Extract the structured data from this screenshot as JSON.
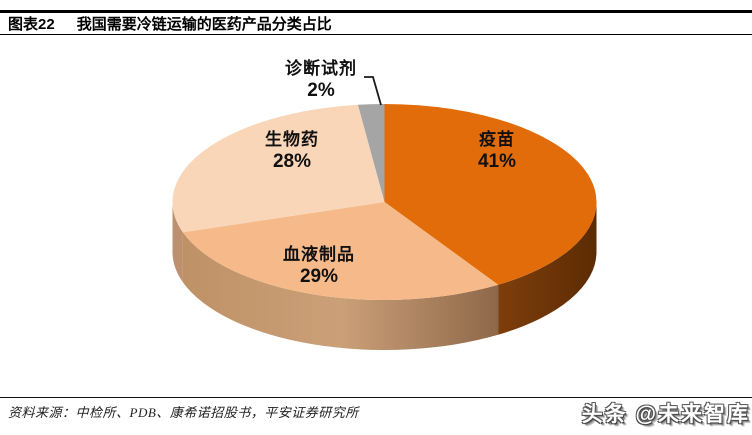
{
  "header": {
    "tag": "图表22",
    "title": "我国需要冷链运输的医药产品分类占比"
  },
  "footer": {
    "source": "资料来源：中检所、PDB、康希诺招股书，平安证券研究所",
    "watermark": "头条 @未来智库"
  },
  "chart_data": {
    "type": "pie",
    "style": "3d",
    "title": "我国需要冷链运输的医药产品分类占比",
    "labels": [
      "疫苗",
      "血液制品",
      "生物药",
      "诊断试剂"
    ],
    "values": [
      41,
      29,
      28,
      2
    ],
    "pct_labels": [
      "41%",
      "29%",
      "28%",
      "2%"
    ],
    "start_angle_deg": 0,
    "direction": "clockwise",
    "legend": "none",
    "colors": [
      "#E36C0A",
      "#F6BA8A",
      "#FAD6B8",
      "#A5A5A5"
    ],
    "side_colors": [
      [
        "#7E3E0B",
        "#5C2B03"
      ],
      [
        "#BF9166",
        "#CBA078",
        "#8E684A"
      ],
      [
        "#BD9070",
        "#BD9070"
      ],
      [
        "#A5A5A5",
        "#A5A5A5"
      ]
    ],
    "leader_line_color": "#1a1a1a"
  }
}
